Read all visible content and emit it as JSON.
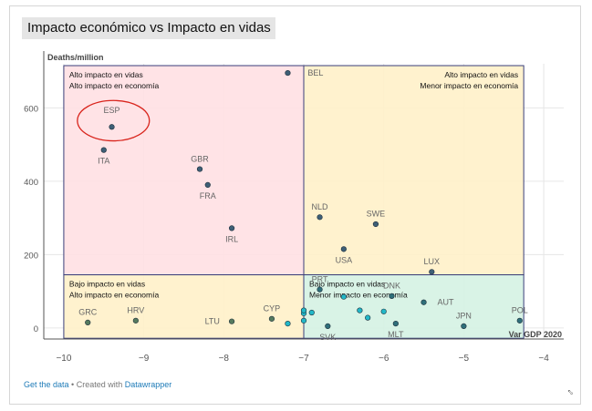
{
  "title": "Impacto económico vs Impacto en vidas",
  "footer": {
    "get_data": "Get the data",
    "separator": " • Created with ",
    "datawrapper": "Datawrapper"
  },
  "chart_data": {
    "type": "scatter",
    "title": "Impacto económico vs Impacto en vidas",
    "xlabel": "Var GDP 2020",
    "ylabel": "Deaths/million",
    "xlim": [
      -10.25,
      -3.75
    ],
    "ylim": [
      -30,
      720
    ],
    "xticks": [
      -10,
      -9,
      -8,
      -7,
      -6,
      -5,
      -4
    ],
    "xtick_labels": [
      "−10",
      "−9",
      "−8",
      "−7",
      "−6",
      "−5",
      "−4"
    ],
    "yticks": [
      0,
      200,
      400,
      600
    ],
    "yaxis_label_text": "Deaths/million",
    "grid": true,
    "quadrants": [
      {
        "x": [
          -10.0,
          -7.0
        ],
        "y": [
          145,
          715
        ],
        "color": "#ffe0e3",
        "lines": [
          "Alto impacto en vidas",
          "Alto impacto en economía"
        ],
        "label_align": "left"
      },
      {
        "x": [
          -7.0,
          -4.25
        ],
        "y": [
          145,
          715
        ],
        "color": "#fff1c9",
        "lines": [
          "Alto impacto en vidas",
          "Menor impacto en economía"
        ],
        "label_align": "right"
      },
      {
        "x": [
          -10.0,
          -7.0
        ],
        "y": [
          -28,
          145
        ],
        "color": "#fff1c9",
        "lines": [
          "Bajo impacto en vidas",
          "Alto impacto en economía"
        ],
        "label_align": "left"
      },
      {
        "x": [
          -7.0,
          -4.25
        ],
        "y": [
          -28,
          145
        ],
        "color": "#d5f2e3",
        "lines": [
          "Bajo impacto en vidas",
          "Menor impacto en economía"
        ],
        "label_align": "left"
      }
    ],
    "points": [
      {
        "label": "BEL",
        "x": -7.2,
        "y": 695,
        "color": "#3e5f76",
        "lx": 0.25,
        "ly": 0
      },
      {
        "label": "ESP",
        "x": -9.4,
        "y": 548,
        "color": "#3e5f76",
        "lx": 0,
        "ly": 45
      },
      {
        "label": "ITA",
        "x": -9.5,
        "y": 485,
        "color": "#3e5f76",
        "lx": 0,
        "ly": -30
      },
      {
        "label": "GBR",
        "x": -8.3,
        "y": 433,
        "color": "#3e5f76",
        "lx": 0,
        "ly": 28
      },
      {
        "label": "FRA",
        "x": -8.2,
        "y": 390,
        "color": "#3e5f76",
        "lx": 0,
        "ly": -30
      },
      {
        "label": "IRL",
        "x": -7.9,
        "y": 272,
        "color": "#3e5f76",
        "lx": 0,
        "ly": -30
      },
      {
        "label": "NLD",
        "x": -6.8,
        "y": 302,
        "color": "#3e5f76",
        "lx": 0,
        "ly": 28
      },
      {
        "label": "SWE",
        "x": -6.1,
        "y": 283,
        "color": "#3e5f76",
        "lx": 0,
        "ly": 28
      },
      {
        "label": "USA",
        "x": -6.5,
        "y": 215,
        "color": "#3e5f76",
        "lx": 0,
        "ly": -30
      },
      {
        "label": "LUX",
        "x": -5.4,
        "y": 153,
        "color": "#3e5f76",
        "lx": 0,
        "ly": 28
      },
      {
        "label": "PRT",
        "x": -6.8,
        "y": 105,
        "color": "#2f6f7a",
        "lx": 0,
        "ly": 28
      },
      {
        "label": "DNK",
        "x": -5.9,
        "y": 87,
        "color": "#2f6f7a",
        "lx": 0,
        "ly": 28
      },
      {
        "label": "AUT",
        "x": -5.5,
        "y": 70,
        "color": "#2f6f7a",
        "lx": 0.17,
        "ly": 0
      },
      {
        "label": "JPN",
        "x": -5.0,
        "y": 5,
        "color": "#2f6f7a",
        "lx": 0,
        "ly": 28
      },
      {
        "label": "POL",
        "x": -4.3,
        "y": 20,
        "color": "#2f6f7a",
        "lx": 0,
        "ly": 28
      },
      {
        "label": "GRC",
        "x": -9.7,
        "y": 15,
        "color": "#557a5e",
        "lx": 0,
        "ly": 28
      },
      {
        "label": "HRV",
        "x": -9.1,
        "y": 20,
        "color": "#557a5e",
        "lx": 0,
        "ly": 28
      },
      {
        "label": "LTU",
        "x": -7.9,
        "y": 18,
        "color": "#557a5e",
        "lx": -0.15,
        "ly": 0
      },
      {
        "label": "CYP",
        "x": -7.4,
        "y": 25,
        "color": "#557a5e",
        "lx": 0,
        "ly": 28
      },
      {
        "label": "SVK",
        "x": -6.7,
        "y": 5,
        "color": "#2f6f7a",
        "lx": 0,
        "ly": -30
      },
      {
        "label": "MLT",
        "x": -5.85,
        "y": 12,
        "color": "#2f6f7a",
        "lx": 0,
        "ly": -30
      },
      {
        "label": "",
        "x": -7.2,
        "y": 12,
        "color": "#22b8c8",
        "lx": 0,
        "ly": 0
      },
      {
        "label": "",
        "x": -7.0,
        "y": 40,
        "color": "#22b8c8",
        "lx": 0,
        "ly": 0
      },
      {
        "label": "",
        "x": -7.0,
        "y": 48,
        "color": "#22b8c8",
        "lx": 0,
        "ly": 0
      },
      {
        "label": "",
        "x": -7.0,
        "y": 20,
        "color": "#22b8c8",
        "lx": 0,
        "ly": 0
      },
      {
        "label": "",
        "x": -6.9,
        "y": 42,
        "color": "#22b8c8",
        "lx": 0,
        "ly": 0
      },
      {
        "label": "",
        "x": -6.5,
        "y": 85,
        "color": "#22b8c8",
        "lx": 0,
        "ly": 0
      },
      {
        "label": "",
        "x": -6.3,
        "y": 48,
        "color": "#22b8c8",
        "lx": 0,
        "ly": 0
      },
      {
        "label": "",
        "x": -6.2,
        "y": 28,
        "color": "#22b8c8",
        "lx": 0,
        "ly": 0
      },
      {
        "label": "",
        "x": -6.0,
        "y": 45,
        "color": "#22b8c8",
        "lx": 0,
        "ly": 0
      }
    ],
    "highlight": {
      "label": "ESP",
      "x": -9.38,
      "y": 565,
      "rx": 0.45,
      "ry": 55,
      "color": "#d9251d"
    }
  }
}
